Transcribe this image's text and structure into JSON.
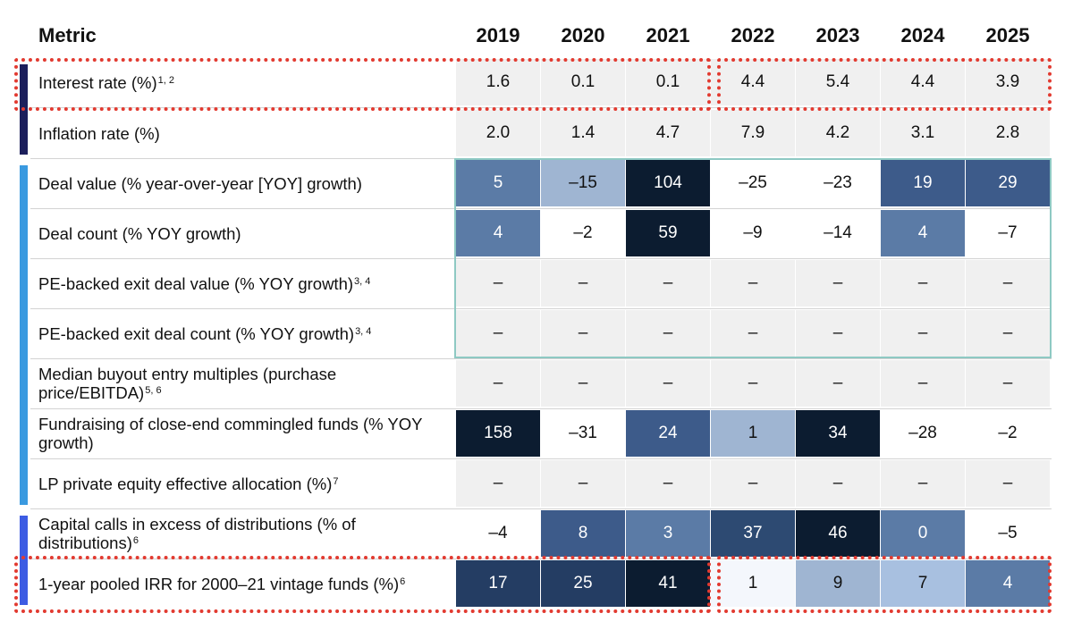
{
  "header": {
    "metric": "Metric",
    "years": [
      "2019",
      "2020",
      "2021",
      "2022",
      "2023",
      "2024",
      "2025"
    ]
  },
  "colors": {
    "navy_bar": "#1c1f5c",
    "light_blue_bar": "#3a9ae0",
    "blue_bar": "#3d5ce3",
    "highlight_border": "#e23a30",
    "group_border": "#8ec9c3",
    "neutral_cell": "#f0f0f0"
  },
  "chart_data": {
    "type": "table",
    "title": "",
    "columns": [
      "2019",
      "2020",
      "2021",
      "2022",
      "2023",
      "2024",
      "2025"
    ],
    "rows": [
      {
        "metric": "Interest rate (%)",
        "sup": "1, 2",
        "group": "macro",
        "style": "plain",
        "values": [
          "1.6",
          "0.1",
          "0.1",
          "4.4",
          "5.4",
          "4.4",
          "3.9"
        ]
      },
      {
        "metric": "Inflation rate (%)",
        "sup": "",
        "group": "macro",
        "style": "plain",
        "values": [
          "2.0",
          "1.4",
          "4.7",
          "7.9",
          "4.2",
          "3.1",
          "2.8"
        ]
      },
      {
        "metric": "Deal value (% year-over-year [YOY] growth)",
        "sup": "",
        "group": "market",
        "style": "heat",
        "values": [
          "5",
          "–15",
          "104",
          "–25",
          "–23",
          "19",
          "29"
        ],
        "fills": [
          "#5b7ba6",
          "#9fb5d2",
          "#0c1c30",
          "#ffffff",
          "#ffffff",
          "#3d5b8a",
          "#3d5b8a"
        ]
      },
      {
        "metric": "Deal count (% YOY growth)",
        "sup": "",
        "group": "market",
        "style": "heat",
        "values": [
          "4",
          "–2",
          "59",
          "–9",
          "–14",
          "4",
          "–7"
        ],
        "fills": [
          "#5b7ba6",
          "#ffffff",
          "#0c1c30",
          "#ffffff",
          "#ffffff",
          "#5b7ba6",
          "#ffffff"
        ]
      },
      {
        "metric": "PE-backed exit deal value (% YOY growth)",
        "sup": "3, 4",
        "group": "market",
        "style": "plain",
        "values": [
          "–",
          "–",
          "–",
          "–",
          "–",
          "–",
          "–"
        ]
      },
      {
        "metric": "PE-backed exit deal count (% YOY growth)",
        "sup": "3, 4",
        "group": "market",
        "style": "plain",
        "values": [
          "–",
          "–",
          "–",
          "–",
          "–",
          "–",
          "–"
        ]
      },
      {
        "metric": "Median buyout entry multiples (purchase price/EBITDA)",
        "sup": "5, 6",
        "group": "market",
        "style": "plain",
        "values": [
          "–",
          "–",
          "–",
          "–",
          "–",
          "–",
          "–"
        ]
      },
      {
        "metric": "Fundraising of close-end commingled funds (% YOY growth)",
        "sup": "",
        "group": "market",
        "style": "heat",
        "values": [
          "158",
          "–31",
          "24",
          "1",
          "34",
          "–28",
          "–2"
        ],
        "fills": [
          "#0c1c30",
          "#ffffff",
          "#3d5b8a",
          "#9fb5d2",
          "#0c1c30",
          "#ffffff",
          "#ffffff"
        ]
      },
      {
        "metric": "LP private equity effective allocation (%)",
        "sup": "7",
        "group": "market",
        "style": "plain",
        "values": [
          "–",
          "–",
          "–",
          "–",
          "–",
          "–",
          "–"
        ]
      },
      {
        "metric": "Capital calls in excess of distributions (% of distributions)",
        "sup": "6",
        "group": "performance",
        "style": "heat",
        "values": [
          "–4",
          "8",
          "3",
          "37",
          "46",
          "0",
          "–5"
        ],
        "fills": [
          "#ffffff",
          "#3d5b8a",
          "#5b7ba6",
          "#2d4a72",
          "#0c1c30",
          "#5b7ba6",
          "#ffffff"
        ]
      },
      {
        "metric": "1-year pooled IRR for 2000–21 vintage funds (%)",
        "sup": "6",
        "group": "performance",
        "style": "heat",
        "values": [
          "17",
          "25",
          "41",
          "1",
          "9",
          "7",
          "4"
        ],
        "fills": [
          "#243d63",
          "#243d63",
          "#0c1c30",
          "#f4f7fc",
          "#9fb5d2",
          "#a8c0e0",
          "#5b7ba6"
        ]
      }
    ]
  }
}
